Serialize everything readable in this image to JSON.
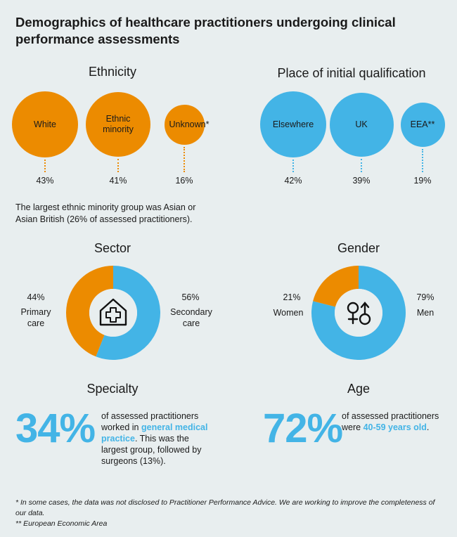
{
  "title": "Demographics of healthcare practitioners undergoing clinical performance assessments",
  "colors": {
    "orange": "#ec8b00",
    "blue": "#43b4e6",
    "background": "#e8eeef"
  },
  "chart_data": [
    {
      "type": "bubble",
      "title": "Ethnicity",
      "categories": [
        "White",
        "Ethnic minority",
        "Unknown*"
      ],
      "values": [
        43,
        41,
        16
      ],
      "value_labels": [
        "43%",
        "41%",
        "16%"
      ],
      "unit": "%",
      "color": "#ec8b00",
      "note": "The largest ethnic minority group was Asian or Asian British (26% of assessed practitioners)."
    },
    {
      "type": "bubble",
      "title": "Place of initial qualification",
      "categories": [
        "Elsewhere",
        "UK",
        "EEA**"
      ],
      "values": [
        42,
        39,
        19
      ],
      "value_labels": [
        "42%",
        "39%",
        "19%"
      ],
      "unit": "%",
      "color": "#43b4e6"
    },
    {
      "type": "pie",
      "title": "Sector",
      "slices": [
        {
          "label": "Primary care",
          "value": 44,
          "value_label": "44%",
          "color": "#ec8b00"
        },
        {
          "label": "Secondary care",
          "value": 56,
          "value_label": "56%",
          "color": "#43b4e6"
        }
      ],
      "icon": "hospital-icon"
    },
    {
      "type": "pie",
      "title": "Gender",
      "slices": [
        {
          "label": "Women",
          "value": 21,
          "value_label": "21%",
          "color": "#ec8b00"
        },
        {
          "label": "Men",
          "value": 79,
          "value_label": "79%",
          "color": "#43b4e6"
        }
      ],
      "icon": "gender-icon"
    }
  ],
  "specialty": {
    "title": "Specialty",
    "big_number": "34%",
    "text_before": "of assessed practitioners worked in ",
    "highlight": "general medical practice",
    "text_after": ". This was the largest group, followed by surgeons (13%)."
  },
  "age": {
    "title": "Age",
    "big_number": "72%",
    "text_before": "of assessed practitioners were ",
    "highlight": "40-59 years old",
    "text_after": "."
  },
  "footnotes": {
    "line1": "* In some cases, the data was not disclosed to Practitioner Performance Advice. We are working to improve the completeness of our data.",
    "line2": "** European Economic Area"
  }
}
